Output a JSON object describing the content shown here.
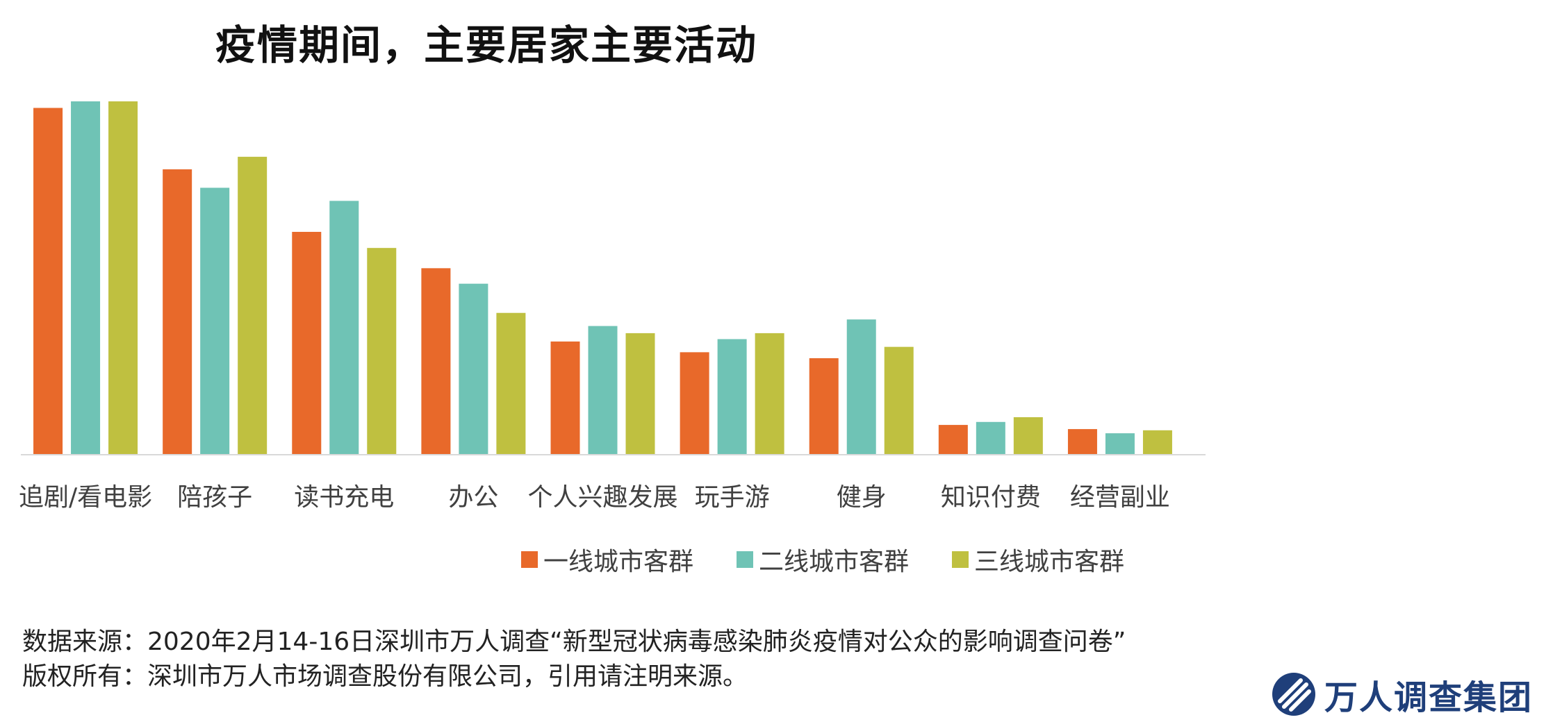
{
  "title": "疫情期间，主要居家主要活动",
  "chart_data": {
    "type": "bar",
    "title": "疫情期间，主要居家主要活动",
    "categories": [
      "追剧/看电影",
      "陪孩子",
      "读书充电",
      "办公",
      "个人兴趣发展",
      "玩手游",
      "健身",
      "知识付费",
      "经营副业"
    ],
    "series": [
      {
        "name": "一线城市客群",
        "color": "#E8692A",
        "values": [
          58.2,
          47.9,
          37.4,
          31.3,
          19.0,
          17.2,
          16.2,
          5.0,
          4.3
        ]
      },
      {
        "name": "二线城市客群",
        "color": "#6FC3B5",
        "values": [
          59.3,
          44.8,
          42.6,
          28.7,
          21.6,
          19.4,
          22.7,
          5.5,
          3.6
        ]
      },
      {
        "name": "三线城市客群",
        "color": "#BFC040",
        "values": [
          59.3,
          50.0,
          34.7,
          23.8,
          20.4,
          20.4,
          18.1,
          6.3,
          4.1
        ]
      }
    ],
    "ylim": [
      0,
      60
    ],
    "grid": false,
    "legend": "bottom"
  },
  "footer": {
    "source": "数据来源：2020年2月14-16日深圳市万人调查“新型冠状病毒感染肺炎疫情对公众的影响调查问卷”",
    "copyright": "版权所有：深圳市万人市场调查股份有限公司，引用请注明来源。"
  },
  "logo": {
    "text": "万人调查集团",
    "color": "#1f3f7a"
  }
}
